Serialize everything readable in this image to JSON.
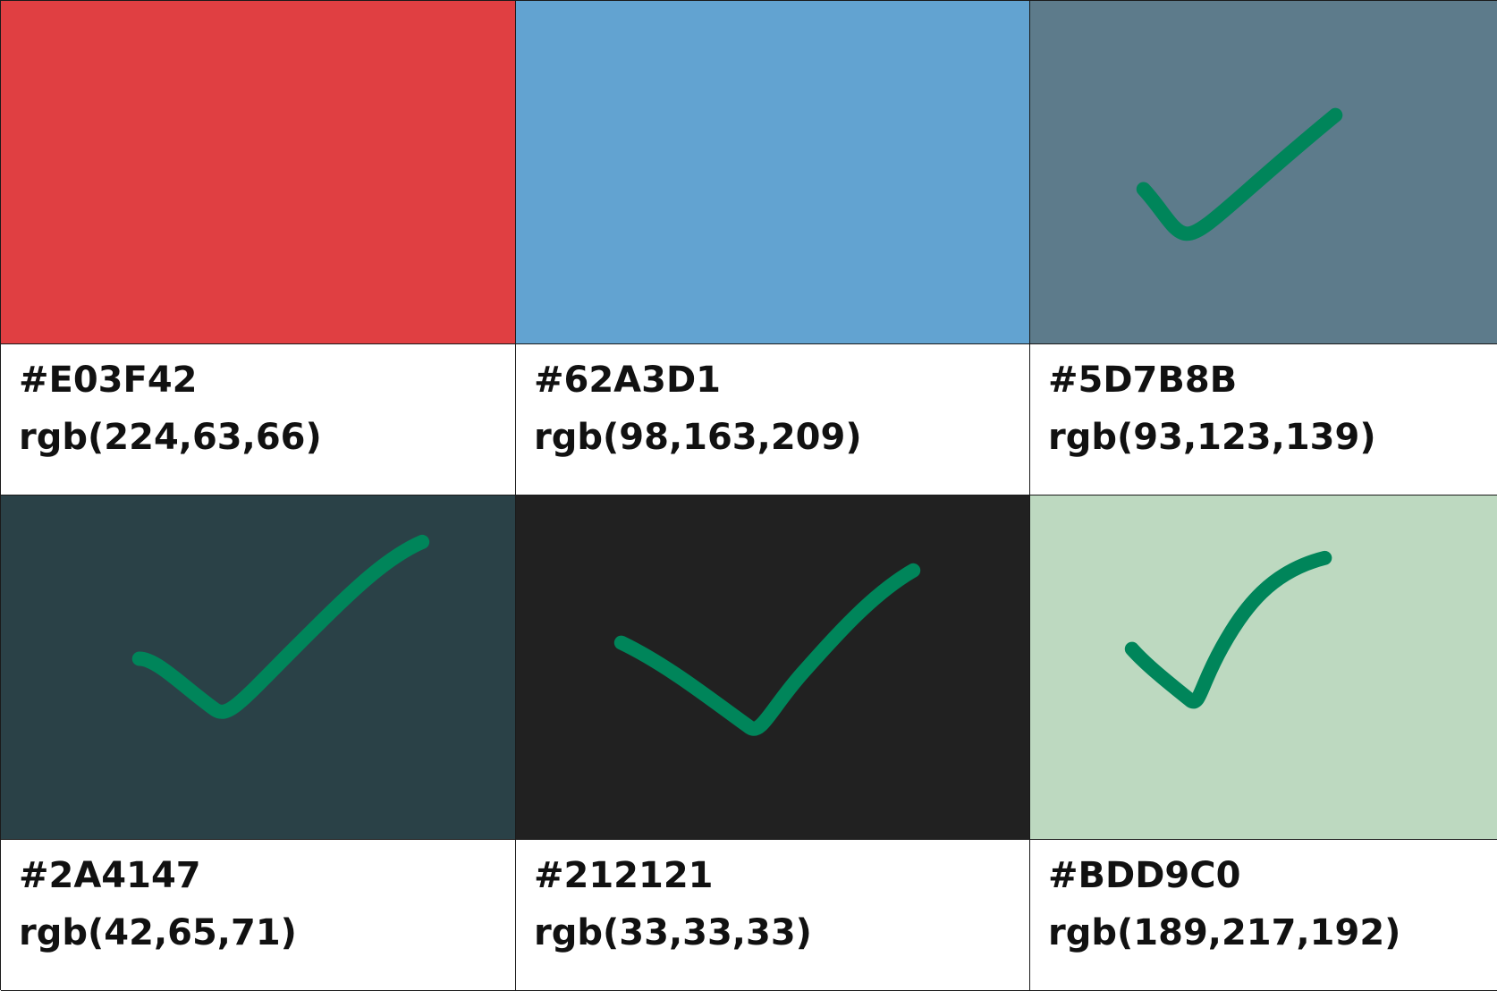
{
  "swatches": [
    {
      "hex": "#E03F42",
      "rgb": "rgb(224,63,66)",
      "color": "#E03F42",
      "checked": false
    },
    {
      "hex": "#62A3D1",
      "rgb": "rgb(98,163,209)",
      "color": "#62A3D1",
      "checked": false
    },
    {
      "hex": "#5D7B8B",
      "rgb": "rgb(93,123,139)",
      "color": "#5D7B8B",
      "checked": true
    },
    {
      "hex": "#2A4147",
      "rgb": "rgb(42,65,71)",
      "color": "#2A4147",
      "checked": true
    },
    {
      "hex": "#212121",
      "rgb": "rgb(33,33,33)",
      "color": "#212121",
      "checked": true
    },
    {
      "hex": "#BDD9C0",
      "rgb": "rgb(189,217,192)",
      "color": "#BDD9C0",
      "checked": true
    }
  ],
  "checkmark_color": "#00855A"
}
